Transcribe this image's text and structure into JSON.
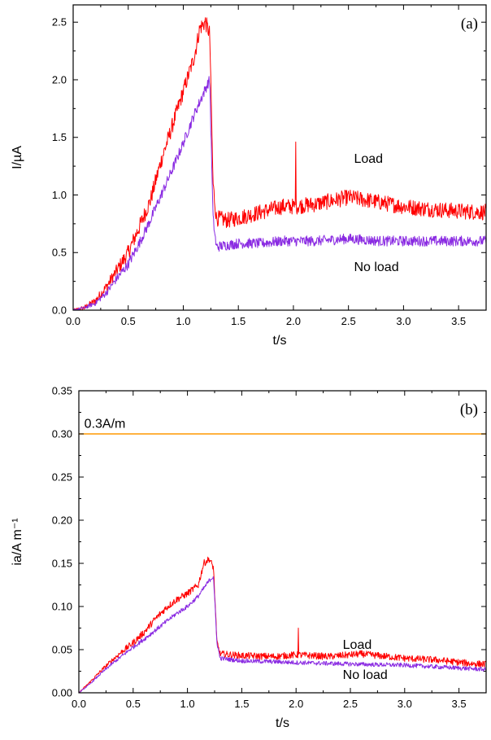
{
  "chart_data": [
    {
      "type": "line",
      "panel_label": "(a)",
      "xlabel": "t/s",
      "ylabel": "I/µA",
      "xlim": [
        0,
        3.75
      ],
      "ylim": [
        0,
        2.65
      ],
      "xticks": [
        0.0,
        0.5,
        1.0,
        1.5,
        2.0,
        2.5,
        3.0,
        3.5
      ],
      "xtick_labels": [
        "0.0",
        "0.5",
        "1.0",
        "1.5",
        "2.0",
        "2.5",
        "3.0",
        "3.5"
      ],
      "yticks": [
        0.0,
        0.5,
        1.0,
        1.5,
        2.0,
        2.5
      ],
      "ytick_labels": [
        "0.0",
        "0.5",
        "1.0",
        "1.5",
        "2.0",
        "2.5"
      ],
      "grid": false,
      "series": [
        {
          "name": "Load",
          "color": "#ff0000",
          "noise": 0.07,
          "x": [
            0,
            0.1,
            0.2,
            0.3,
            0.4,
            0.5,
            0.6,
            0.7,
            0.8,
            0.9,
            1.0,
            1.1,
            1.15,
            1.2,
            1.24,
            1.27,
            1.3,
            1.4,
            1.5,
            1.7,
            1.9,
            2.0,
            2.2,
            2.5,
            2.7,
            3.0,
            3.2,
            3.5,
            3.75
          ],
          "y": [
            0,
            0.02,
            0.08,
            0.2,
            0.35,
            0.5,
            0.72,
            0.95,
            1.3,
            1.6,
            1.9,
            2.2,
            2.45,
            2.5,
            2.4,
            1.1,
            0.8,
            0.78,
            0.8,
            0.85,
            0.9,
            0.9,
            0.92,
            0.98,
            0.95,
            0.9,
            0.88,
            0.86,
            0.85
          ],
          "spikes": [
            {
              "x": 2.02,
              "y": 1.46
            }
          ]
        },
        {
          "name": "No load",
          "color": "#8a2be2",
          "noise": 0.045,
          "x": [
            0,
            0.1,
            0.2,
            0.3,
            0.4,
            0.5,
            0.6,
            0.7,
            0.8,
            0.9,
            1.0,
            1.1,
            1.2,
            1.24,
            1.27,
            1.3,
            1.5,
            1.7,
            1.9,
            2.2,
            2.5,
            2.8,
            3.0,
            3.2,
            3.5,
            3.75
          ],
          "y": [
            0,
            0.02,
            0.06,
            0.15,
            0.28,
            0.4,
            0.58,
            0.78,
            1.0,
            1.22,
            1.45,
            1.7,
            1.92,
            2.0,
            0.8,
            0.55,
            0.58,
            0.58,
            0.6,
            0.6,
            0.62,
            0.6,
            0.6,
            0.6,
            0.6,
            0.6
          ],
          "spikes": [
            {
              "x": 1.25,
              "y": 1.55
            }
          ]
        }
      ],
      "annotations": [
        {
          "text": "Load",
          "x": 2.55,
          "y": 1.28
        },
        {
          "text": "No load",
          "x": 2.55,
          "y": 0.34
        }
      ]
    },
    {
      "type": "line",
      "panel_label": "(b)",
      "xlabel": "t/s",
      "ylabel": "ia/A m⁻¹",
      "xlim": [
        0,
        3.75
      ],
      "ylim": [
        0,
        0.35
      ],
      "xticks": [
        0.0,
        0.5,
        1.0,
        1.5,
        2.0,
        2.5,
        3.0,
        3.5
      ],
      "xtick_labels": [
        "0.0",
        "0.5",
        "1.0",
        "1.5",
        "2.0",
        "2.5",
        "3.0",
        "3.5"
      ],
      "yticks": [
        0.0,
        0.05,
        0.1,
        0.15,
        0.2,
        0.25,
        0.3,
        0.35
      ],
      "ytick_labels": [
        "0.00",
        "0.05",
        "0.10",
        "0.15",
        "0.20",
        "0.25",
        "0.30",
        "0.35"
      ],
      "grid": false,
      "series": [
        {
          "name": "Load",
          "color": "#ff0000",
          "noise": 0.004,
          "x": [
            0,
            0.1,
            0.2,
            0.3,
            0.4,
            0.5,
            0.6,
            0.7,
            0.8,
            0.9,
            1.0,
            1.1,
            1.15,
            1.2,
            1.24,
            1.27,
            1.3,
            1.5,
            1.8,
            2.0,
            2.3,
            2.6,
            3.0,
            3.3,
            3.6,
            3.75
          ],
          "y": [
            0,
            0.012,
            0.025,
            0.037,
            0.048,
            0.058,
            0.07,
            0.085,
            0.098,
            0.108,
            0.115,
            0.125,
            0.15,
            0.155,
            0.145,
            0.06,
            0.045,
            0.043,
            0.042,
            0.044,
            0.042,
            0.045,
            0.04,
            0.038,
            0.034,
            0.033
          ],
          "spikes": [
            {
              "x": 2.02,
              "y": 0.075
            }
          ]
        },
        {
          "name": "No load",
          "color": "#8a2be2",
          "noise": 0.0025,
          "x": [
            0,
            0.1,
            0.2,
            0.3,
            0.4,
            0.5,
            0.6,
            0.7,
            0.8,
            0.9,
            1.0,
            1.1,
            1.2,
            1.24,
            1.27,
            1.3,
            1.5,
            1.8,
            2.0,
            2.3,
            2.6,
            3.0,
            3.3,
            3.6,
            3.75
          ],
          "y": [
            0,
            0.01,
            0.022,
            0.033,
            0.043,
            0.053,
            0.062,
            0.072,
            0.082,
            0.092,
            0.1,
            0.112,
            0.13,
            0.135,
            0.06,
            0.04,
            0.037,
            0.036,
            0.035,
            0.034,
            0.033,
            0.032,
            0.03,
            0.028,
            0.027
          ],
          "spikes": []
        },
        {
          "name": "0.3A/m",
          "color": "#ff9900",
          "noise": 0,
          "x": [
            0,
            3.75
          ],
          "y": [
            0.3,
            0.3
          ],
          "spikes": []
        }
      ],
      "annotations": [
        {
          "text": "0.3A/m",
          "x": 0.05,
          "y": 0.307
        },
        {
          "text": "Load",
          "x": 2.43,
          "y": 0.051
        },
        {
          "text": "No load",
          "x": 2.43,
          "y": 0.016
        }
      ]
    }
  ]
}
